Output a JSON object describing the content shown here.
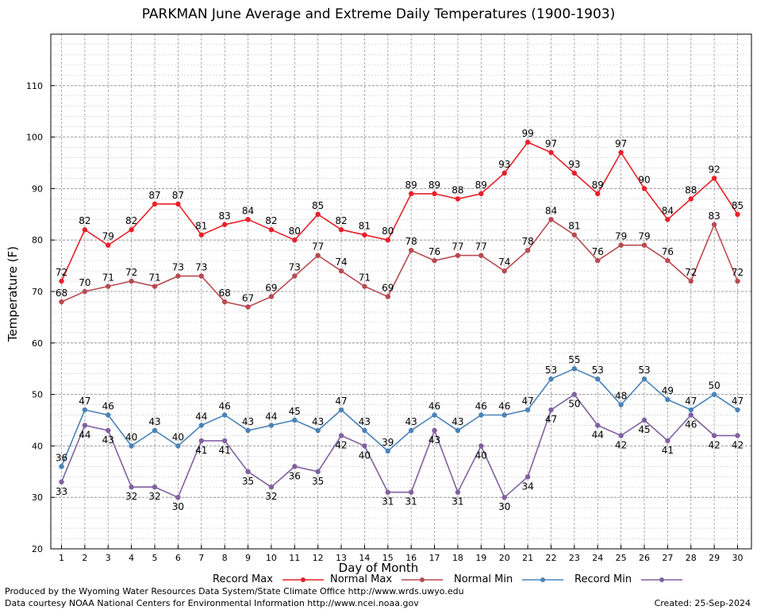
{
  "chart_data": {
    "type": "line",
    "title": "PARKMAN June Average and Extreme Daily Temperatures (1900-1903)",
    "xlabel": "Day of Month",
    "ylabel": "Temperature (F)",
    "x": [
      1,
      2,
      3,
      4,
      5,
      6,
      7,
      8,
      9,
      10,
      11,
      12,
      13,
      14,
      15,
      16,
      17,
      18,
      19,
      20,
      21,
      22,
      23,
      24,
      25,
      26,
      27,
      28,
      29,
      30
    ],
    "ylim": [
      20,
      120
    ],
    "yticks": [
      20,
      30,
      40,
      50,
      60,
      70,
      80,
      90,
      100,
      110
    ],
    "grid": true,
    "legend_position": "bottom",
    "series": [
      {
        "name": "Record Max",
        "color": "#e8202a",
        "label_pos": "above",
        "values": [
          72,
          82,
          79,
          82,
          87,
          87,
          81,
          83,
          84,
          82,
          80,
          85,
          82,
          81,
          80,
          89,
          89,
          88,
          89,
          93,
          99,
          97,
          93,
          89,
          97,
          90,
          84,
          88,
          92,
          85
        ]
      },
      {
        "name": "Normal Max",
        "color": "#b84a52",
        "label_pos": "above",
        "values": [
          68,
          70,
          71,
          72,
          71,
          73,
          73,
          68,
          67,
          69,
          73,
          77,
          74,
          71,
          69,
          78,
          76,
          77,
          77,
          74,
          78,
          84,
          81,
          76,
          79,
          79,
          76,
          72,
          83,
          72
        ]
      },
      {
        "name": "Normal Min",
        "color": "#4a82b8",
        "label_pos": "above",
        "values": [
          36,
          47,
          46,
          40,
          43,
          40,
          44,
          46,
          43,
          44,
          45,
          43,
          47,
          43,
          39,
          43,
          46,
          43,
          46,
          46,
          47,
          53,
          55,
          53,
          48,
          53,
          49,
          47,
          50,
          47
        ]
      },
      {
        "name": "Record Min",
        "color": "#8060a0",
        "label_pos": "below",
        "values": [
          33,
          44,
          43,
          32,
          32,
          30,
          41,
          41,
          35,
          32,
          36,
          35,
          42,
          40,
          31,
          31,
          43,
          31,
          40,
          30,
          34,
          47,
          50,
          44,
          42,
          45,
          41,
          46,
          42,
          42
        ]
      }
    ]
  },
  "footer": {
    "producer": "Produced by the Wyoming Water Resources Data System/State Climate Office http://www.wrds.uwyo.edu",
    "courtesy": "Data courtesy NOAA National Centers for Environmental Information http://www.ncei.noaa.gov",
    "created": "Created:  25-Sep-2024"
  }
}
